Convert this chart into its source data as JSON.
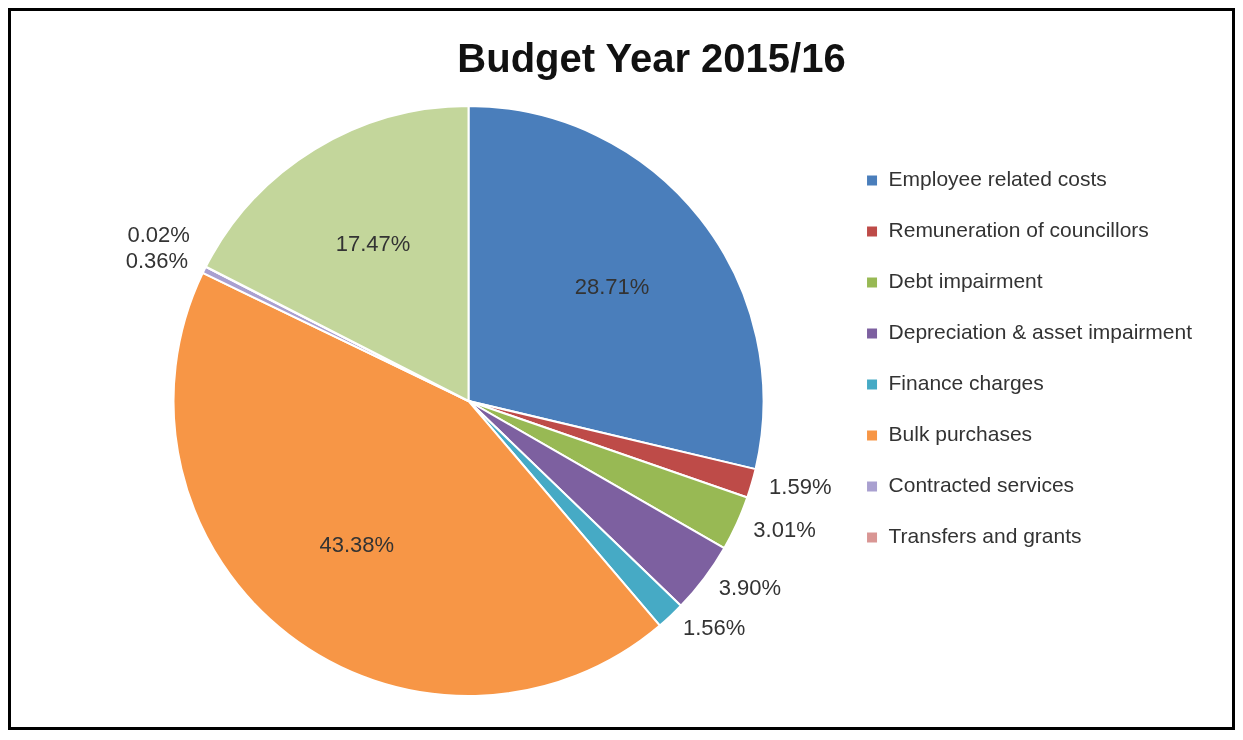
{
  "chart_data": {
    "type": "pie",
    "title": "Budget Year 2015/16",
    "categories": [
      "Employee related costs",
      "Remuneration of councillors",
      "Debt impairment",
      "Depreciation & asset impairment",
      "Finance charges",
      "Bulk purchases",
      "Contracted services",
      "Transfers and grants",
      null
    ],
    "values": [
      28.71,
      1.59,
      3.01,
      3.9,
      1.56,
      43.38,
      0.36,
      0.02,
      17.47
    ],
    "value_labels": [
      "28.71%",
      "1.59%",
      "3.01%",
      "3.90%",
      "1.56%",
      "43.38%",
      "0.36%",
      "0.02%",
      "17.47%"
    ],
    "colors": [
      "#4a7ebb",
      "#be4b48",
      "#98b954",
      "#7d60a0",
      "#46aac5",
      "#f79646",
      "#a9a0d0",
      "#d99694",
      "#c3d69b"
    ],
    "legend": "right"
  }
}
